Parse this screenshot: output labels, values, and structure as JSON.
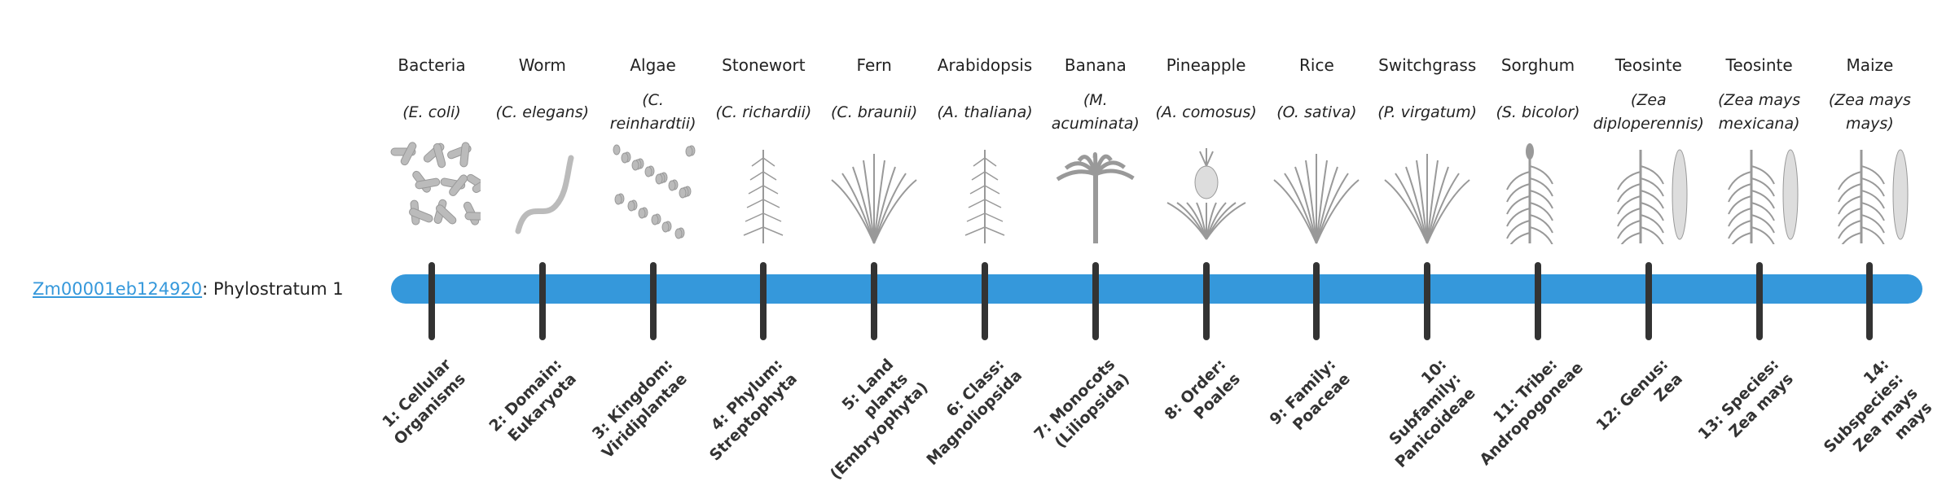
{
  "gene": {
    "id": "Zm00001eb124920",
    "suffix": ": Phylostratum 1"
  },
  "colors": {
    "bar": "#3598db",
    "tick": "#333333",
    "link": "#3598db"
  },
  "organisms": [
    {
      "common": "Bacteria",
      "scientific": "(E. coli)",
      "icon": "bacteria-rods"
    },
    {
      "common": "Worm",
      "scientific": "(C. elegans)",
      "icon": "worm"
    },
    {
      "common": "Algae",
      "scientific": "(C. reinhardtii)",
      "icon": "algae-cells"
    },
    {
      "common": "Stonewort",
      "scientific": "(C. richardii)",
      "icon": "stonewort"
    },
    {
      "common": "Fern",
      "scientific": "(C. braunii)",
      "icon": "fern"
    },
    {
      "common": "Arabidopsis",
      "scientific": "(A. thaliana)",
      "icon": "arabidopsis"
    },
    {
      "common": "Banana",
      "scientific": "(M. acuminata)",
      "icon": "banana-tree"
    },
    {
      "common": "Pineapple",
      "scientific": "(A. comosus)",
      "icon": "pineapple"
    },
    {
      "common": "Rice",
      "scientific": "(O. sativa)",
      "icon": "rice"
    },
    {
      "common": "Switchgrass",
      "scientific": "(P. virgatum)",
      "icon": "switchgrass"
    },
    {
      "common": "Sorghum",
      "scientific": "(S. bicolor)",
      "icon": "sorghum"
    },
    {
      "common": "Teosinte",
      "scientific": "(Zea diploperennis)",
      "icon": "teosinte"
    },
    {
      "common": "Teosinte",
      "scientific": "(Zea mays mexicana)",
      "icon": "teosinte"
    },
    {
      "common": "Maize",
      "scientific": "(Zea mays mays)",
      "icon": "maize"
    }
  ],
  "strata": [
    "1: Cellular Organisms",
    "2: Domain: Eukaryota",
    "3: Kingdom: Viridiplantae",
    "4: Phylum: Streptophyta",
    "5: Land plants (Embryophyta)",
    "6: Class: Magnoliopsida",
    "7: Monocots (Liliopsida)",
    "8: Order: Poales",
    "9: Family: Poaceae",
    "10: Subfamily: Panicoideae",
    "11: Tribe: Andropogoneae",
    "12: Genus: Zea",
    "13: Species: Zea mays",
    "14: Subspecies: Zea mays mays"
  ]
}
